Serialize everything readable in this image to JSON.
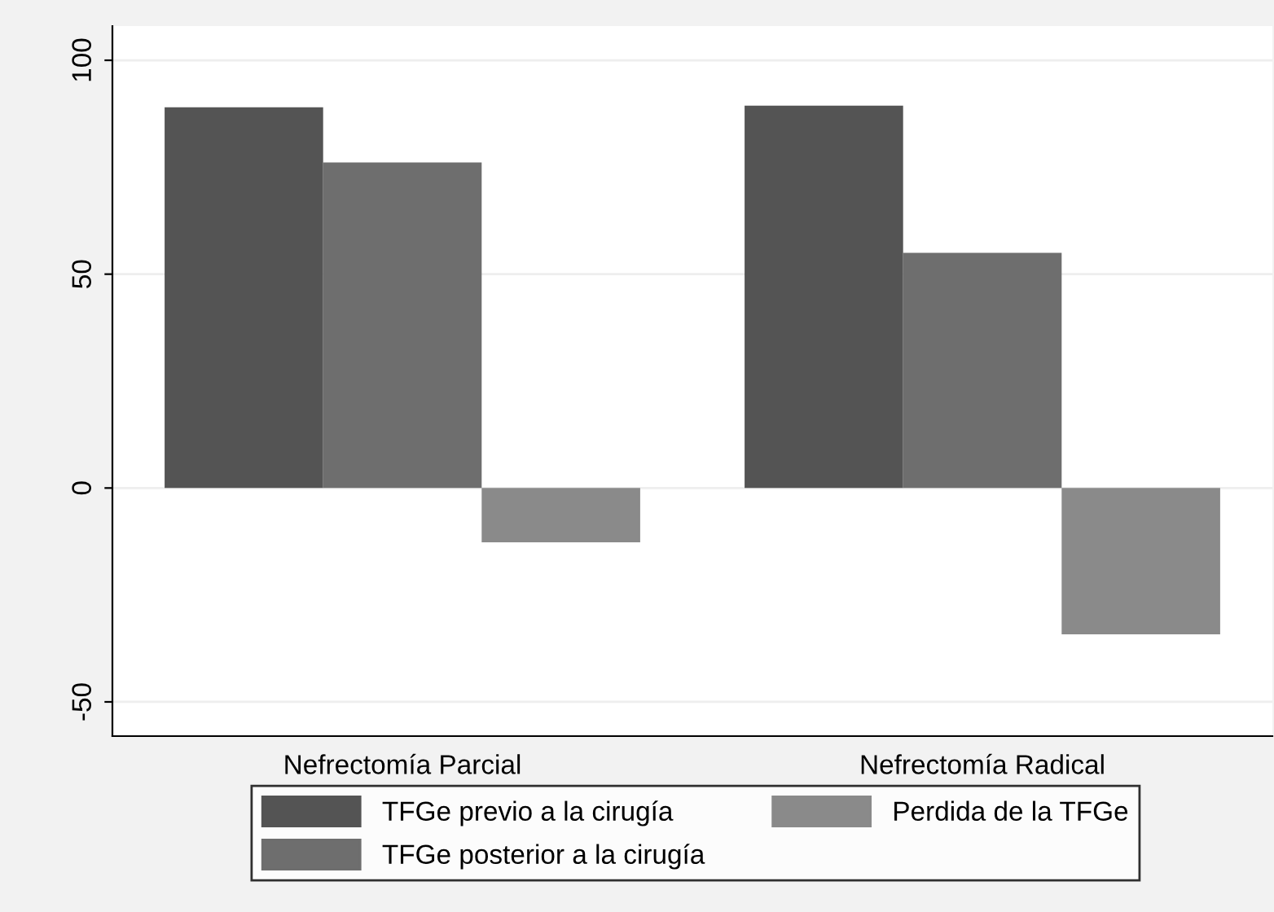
{
  "chart_data": {
    "type": "bar",
    "categories": [
      "Nefrectomía Parcial",
      "Nefrectomía Radical"
    ],
    "series": [
      {
        "name": "TFGe previo a la cirugía",
        "color": "#545454",
        "values": [
          89.0,
          89.4
        ]
      },
      {
        "name": "TFGe posterior a la cirugía",
        "color": "#6e6e6e",
        "values": [
          76.1,
          55.0
        ]
      },
      {
        "name": "Perdida de la TFGe",
        "color": "#8a8a8a",
        "values": [
          -12.7,
          -34.2
        ]
      }
    ],
    "ylim": [
      -58,
      108
    ],
    "yticks": [
      -50,
      0,
      50,
      100
    ],
    "grid": "y",
    "legend": "bottom"
  }
}
